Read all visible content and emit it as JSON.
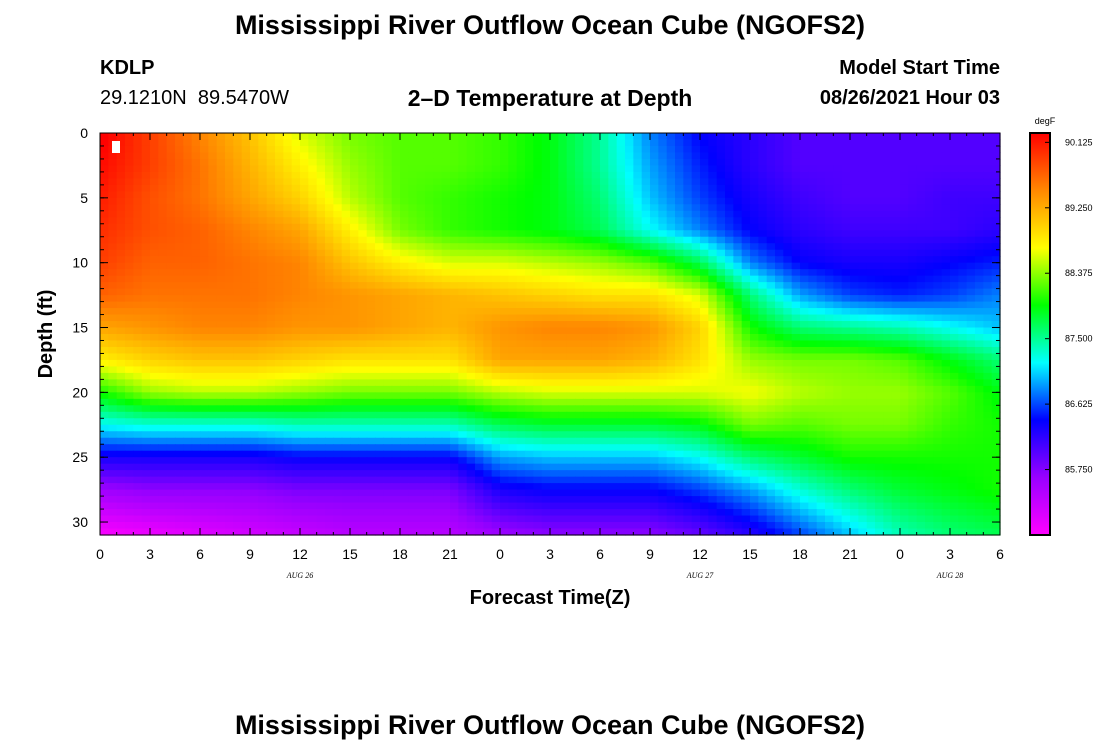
{
  "page": {
    "title_top": "Mississippi River Outflow Ocean Cube (NGOFS2)",
    "title_bottom": "Mississippi River Outflow Ocean Cube (NGOFS2)",
    "station_id": "KDLP",
    "station_coords": "29.1210N  89.5470W",
    "subtitle": "2–D Temperature at Depth",
    "model_start_label": "Model Start Time",
    "model_start_value": "08/26/2021 Hour 03"
  },
  "chart_data": {
    "type": "heatmap",
    "title": "2–D Temperature at Depth",
    "xlabel": "Forecast Time(Z)",
    "ylabel": "Depth (ft)",
    "x_range_hours": [
      0,
      54
    ],
    "x_tick_labels": [
      "0",
      "3",
      "6",
      "9",
      "12",
      "15",
      "18",
      "21",
      "0",
      "3",
      "6",
      "9",
      "12",
      "15",
      "18",
      "21",
      "0",
      "3",
      "6"
    ],
    "x_date_labels": [
      {
        "label": "AUG 26",
        "hour": 12
      },
      {
        "label": "AUG 27",
        "hour": 36
      },
      {
        "label": "AUG 28",
        "hour": 51
      }
    ],
    "y_range": [
      0,
      31
    ],
    "y_inverted": true,
    "y_ticks": [
      0,
      5,
      10,
      15,
      20,
      25,
      30
    ],
    "colorbar": {
      "unit": "degF",
      "range": [
        84.875,
        90.25
      ],
      "labels": [
        "90.125",
        "89.250",
        "88.375",
        "87.500",
        "86.625",
        "85.750"
      ],
      "colors": [
        "#ff00ff",
        "#9900ff",
        "#0000ff",
        "#00ffff",
        "#00ff00",
        "#ffff00",
        "#ff8800",
        "#ff0000"
      ]
    },
    "grid_hours": [
      0,
      3,
      6,
      9,
      12,
      15,
      18,
      21,
      24,
      27,
      30,
      33,
      36,
      39,
      42,
      45,
      48,
      51,
      54
    ],
    "grid_depths": [
      0,
      2.5,
      5,
      7.5,
      10,
      12.5,
      15,
      17.5,
      20,
      22.5,
      25,
      27.5,
      31
    ],
    "values": [
      [
        90.3,
        89.9,
        89.5,
        89.1,
        88.6,
        88.3,
        88.2,
        88.2,
        88.1,
        87.9,
        87.5,
        86.8,
        86.4,
        86.2,
        86.0,
        86.0,
        86.0,
        86.0,
        86.0
      ],
      [
        90.2,
        89.9,
        89.6,
        89.2,
        88.8,
        88.4,
        88.2,
        88.2,
        88.1,
        87.9,
        87.5,
        86.9,
        86.5,
        86.2,
        86.0,
        86.0,
        86.0,
        86.0,
        86.0
      ],
      [
        90.1,
        89.8,
        89.6,
        89.3,
        89.0,
        88.5,
        88.2,
        88.1,
        88.0,
        87.9,
        87.6,
        87.0,
        86.6,
        86.3,
        86.1,
        86.0,
        86.0,
        86.1,
        86.1
      ],
      [
        90.0,
        89.8,
        89.7,
        89.5,
        89.3,
        88.8,
        88.3,
        88.1,
        88.0,
        87.9,
        87.7,
        87.2,
        86.8,
        86.4,
        86.2,
        86.1,
        86.1,
        86.1,
        86.2
      ],
      [
        89.9,
        89.7,
        89.7,
        89.6,
        89.5,
        89.1,
        88.8,
        88.6,
        88.6,
        88.5,
        88.4,
        88.2,
        87.7,
        86.8,
        86.4,
        86.3,
        86.3,
        86.4,
        86.5
      ],
      [
        89.7,
        89.6,
        89.6,
        89.6,
        89.5,
        89.4,
        89.3,
        89.2,
        89.1,
        89.0,
        88.9,
        88.9,
        88.6,
        87.6,
        86.9,
        86.6,
        86.5,
        86.6,
        86.8
      ],
      [
        89.3,
        89.4,
        89.5,
        89.5,
        89.4,
        89.4,
        89.3,
        89.2,
        89.4,
        89.5,
        89.5,
        89.4,
        89.0,
        88.0,
        87.6,
        87.5,
        87.4,
        87.2,
        87.0
      ],
      [
        88.8,
        89.0,
        89.1,
        89.1,
        89.0,
        88.9,
        88.9,
        88.9,
        89.3,
        89.3,
        89.3,
        89.2,
        88.9,
        88.4,
        88.3,
        88.3,
        88.2,
        87.9,
        87.6
      ],
      [
        88.0,
        88.4,
        88.5,
        88.5,
        88.4,
        88.3,
        88.3,
        88.3,
        88.5,
        88.6,
        88.6,
        88.6,
        88.6,
        88.7,
        88.5,
        88.4,
        88.4,
        88.2,
        87.9
      ],
      [
        87.2,
        87.3,
        87.3,
        87.3,
        87.4,
        87.4,
        87.4,
        87.4,
        87.7,
        87.8,
        87.8,
        87.8,
        87.9,
        88.3,
        88.2,
        88.3,
        88.3,
        88.1,
        88.0
      ],
      [
        86.3,
        86.3,
        86.3,
        86.3,
        86.4,
        86.4,
        86.4,
        86.4,
        86.9,
        87.0,
        87.0,
        87.0,
        87.2,
        87.6,
        87.8,
        88.0,
        88.0,
        88.0,
        88.0
      ],
      [
        85.6,
        85.7,
        85.7,
        85.7,
        85.8,
        85.8,
        85.8,
        85.8,
        86.3,
        86.4,
        86.4,
        86.4,
        86.6,
        86.9,
        87.3,
        87.6,
        87.8,
        87.9,
        88.0
      ],
      [
        84.9,
        85.0,
        85.1,
        85.2,
        85.3,
        85.4,
        85.4,
        85.4,
        85.6,
        85.7,
        85.7,
        85.7,
        85.9,
        86.2,
        86.6,
        87.0,
        87.4,
        87.6,
        87.7
      ]
    ]
  }
}
